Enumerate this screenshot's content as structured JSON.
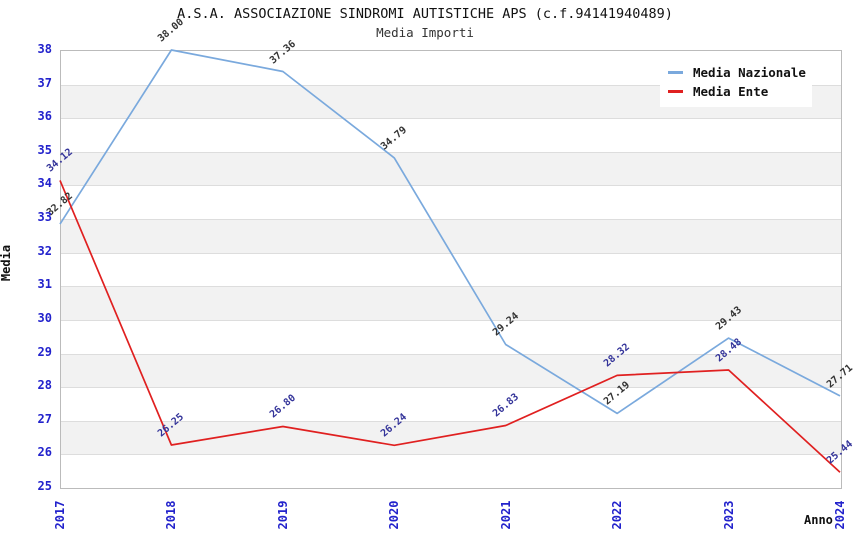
{
  "header": {
    "title": "A.S.A. ASSOCIAZIONE SINDROMI AUTISTICHE APS (c.f.94141940489)",
    "subtitle": "Media Importi"
  },
  "legend": {
    "items": [
      {
        "label": "Media Nazionale",
        "color": "#7aa9dd"
      },
      {
        "label": "Media Ente",
        "color": "#e02020"
      }
    ]
  },
  "axes": {
    "y_label": "Media",
    "x_label": "Anno",
    "y_ticks": [
      "38",
      "37",
      "36",
      "35",
      "34",
      "33",
      "32",
      "31",
      "30",
      "29",
      "28",
      "27",
      "26",
      "25"
    ],
    "x_ticks": [
      "2017",
      "2018",
      "2019",
      "2020",
      "2021",
      "2022",
      "2023",
      "2024"
    ],
    "tick_color": "#2222cc"
  },
  "colors": {
    "background": "#ffffff",
    "band_gray": "#f2f2f2",
    "gridline": "#dddddd",
    "plot_border": "#bbbbbb"
  },
  "chart_data": {
    "type": "line",
    "title": "A.S.A. ASSOCIAZIONE SINDROMI AUTISTICHE APS (c.f.94141940489)",
    "subtitle": "Media Importi",
    "xlabel": "Anno",
    "ylabel": "Media",
    "x": [
      "2017",
      "2018",
      "2019",
      "2020",
      "2021",
      "2022",
      "2023",
      "2024"
    ],
    "series": [
      {
        "name": "Media Nazionale",
        "color": "#7aa9dd",
        "label_color": "#333333",
        "values": [
          32.82,
          38.0,
          37.36,
          34.79,
          29.24,
          27.19,
          29.43,
          27.71
        ]
      },
      {
        "name": "Media Ente",
        "color": "#e02020",
        "label_color": "#333399",
        "values": [
          34.12,
          26.25,
          26.8,
          26.24,
          26.83,
          28.32,
          28.48,
          25.44
        ]
      }
    ],
    "ylim": [
      25,
      38
    ],
    "y_tick_step": 1,
    "grid": "horizontal gridlines every 1 unit, alternating white/gray unit bands",
    "legend_position": "top-right",
    "point_labels": "each point labelled with its value (2 decimals), rotated ~40deg"
  }
}
